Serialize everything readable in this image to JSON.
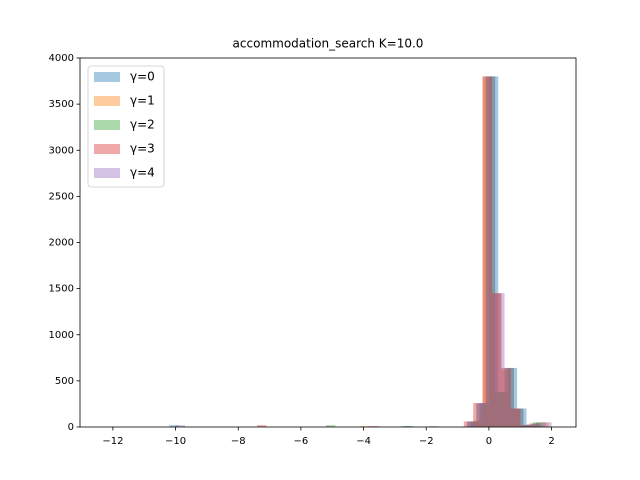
{
  "chart_data": {
    "type": "histogram",
    "title": "accommodation_search K=10.0",
    "xlim": [
      -13.05,
      2.78
    ],
    "ylim": [
      0,
      4000
    ],
    "xticks": [
      {
        "value": -12,
        "label": "−12"
      },
      {
        "value": -10,
        "label": "−10"
      },
      {
        "value": -8,
        "label": "−8"
      },
      {
        "value": -6,
        "label": "−6"
      },
      {
        "value": -4,
        "label": "−4"
      },
      {
        "value": -2,
        "label": "−2"
      },
      0,
      2
    ],
    "yticks": [
      0,
      500,
      1000,
      1500,
      2000,
      2500,
      3000,
      3500,
      4000
    ],
    "grid": false,
    "legend": "upper left",
    "alpha": 0.4,
    "series": [
      {
        "name": "γ=0",
        "color": "#1f77b4",
        "bins": [
          -10.2,
          -9.9,
          -9.6,
          -9.3,
          -9.0,
          -8.7,
          -8.4,
          -8.1,
          -7.8,
          -7.5,
          -7.2,
          -6.9,
          -6.6,
          -6.3,
          -6.0,
          -5.7,
          -5.4,
          -5.1,
          -4.8,
          -4.5,
          -4.2,
          -3.9,
          -3.6,
          -3.3,
          -3.0,
          -2.7,
          -2.4,
          -2.1,
          -1.8,
          -1.5,
          -1.2,
          -0.9,
          -0.6,
          -0.3,
          0.0,
          0.3,
          0.6,
          0.9,
          1.2,
          1.5,
          1.8
        ],
        "values": [
          20,
          0,
          0,
          0,
          0,
          0,
          0,
          0,
          0,
          0,
          0,
          0,
          0,
          0,
          0,
          0,
          0,
          0,
          0,
          0,
          0,
          0,
          0,
          0,
          0,
          10,
          0,
          0,
          0,
          0,
          0,
          0,
          60,
          260,
          3800,
          380,
          640,
          200,
          30,
          50
        ]
      },
      {
        "name": "γ=1",
        "color": "#ff7f0e",
        "bins": [
          -10.1,
          -9.8,
          -9.5,
          -9.2,
          -8.9,
          -8.6,
          -8.3,
          -8.0,
          -7.7,
          -7.4,
          -7.1,
          -6.8,
          -6.5,
          -6.2,
          -5.9,
          -5.6,
          -5.3,
          -5.0,
          -4.7,
          -4.4,
          -4.1,
          -3.8,
          -3.5,
          -3.2,
          -2.9,
          -2.6,
          -2.3,
          -2.0,
          -1.7,
          -1.4,
          -1.1,
          -0.8,
          -0.5,
          -0.2,
          0.1,
          0.4,
          0.7,
          1.0,
          1.3,
          1.6,
          1.9
        ],
        "values": [
          0,
          0,
          0,
          0,
          0,
          0,
          0,
          0,
          0,
          0,
          0,
          0,
          0,
          0,
          0,
          0,
          0,
          0,
          0,
          0,
          10,
          0,
          0,
          0,
          0,
          0,
          0,
          0,
          0,
          0,
          0,
          0,
          70,
          3800,
          1450,
          620,
          200,
          20,
          10,
          50
        ]
      },
      {
        "name": "γ=2",
        "color": "#2ca02c",
        "bins": [
          -10.3,
          -10.0,
          -9.7,
          -9.4,
          -9.1,
          -8.8,
          -8.5,
          -8.2,
          -7.9,
          -7.6,
          -7.3,
          -7.0,
          -6.7,
          -6.4,
          -6.1,
          -5.8,
          -5.5,
          -5.2,
          -4.9,
          -4.6,
          -4.3,
          -4.0,
          -3.7,
          -3.4,
          -3.1,
          -2.8,
          -2.5,
          -2.2,
          -1.9,
          -1.6,
          -1.3,
          -1.0,
          -0.7,
          -0.4,
          -0.1,
          0.2,
          0.5,
          0.8,
          1.1,
          1.4,
          1.7
        ],
        "values": [
          0,
          0,
          0,
          0,
          0,
          0,
          0,
          0,
          0,
          0,
          0,
          0,
          0,
          0,
          0,
          0,
          0,
          20,
          0,
          0,
          0,
          0,
          0,
          0,
          0,
          10,
          0,
          0,
          0,
          0,
          0,
          0,
          60,
          250,
          3800,
          380,
          640,
          200,
          20,
          50
        ]
      },
      {
        "name": "γ=3",
        "color": "#d62728",
        "bins": [
          -10.4,
          -10.1,
          -9.8,
          -9.5,
          -9.2,
          -8.9,
          -8.6,
          -8.3,
          -8.0,
          -7.7,
          -7.4,
          -7.1,
          -6.8,
          -6.5,
          -6.2,
          -5.9,
          -5.6,
          -5.3,
          -5.0,
          -4.7,
          -4.4,
          -4.1,
          -3.8,
          -3.5,
          -3.2,
          -2.9,
          -2.6,
          -2.3,
          -2.0,
          -1.7,
          -1.4,
          -1.1,
          -0.8,
          -0.5,
          -0.2,
          0.1,
          0.4,
          0.7,
          1.0,
          1.3,
          1.6
        ],
        "values": [
          0,
          0,
          0,
          0,
          0,
          0,
          0,
          0,
          0,
          0,
          20,
          0,
          0,
          0,
          0,
          0,
          0,
          0,
          0,
          0,
          0,
          0,
          10,
          0,
          0,
          0,
          0,
          0,
          0,
          0,
          0,
          0,
          60,
          260,
          3800,
          1450,
          640,
          200,
          20,
          40
        ]
      },
      {
        "name": "γ=4",
        "color": "#9467bd",
        "bins": [
          -10.0,
          -9.7,
          -9.4,
          -9.1,
          -8.8,
          -8.5,
          -8.2,
          -7.9,
          -7.6,
          -7.3,
          -7.0,
          -6.7,
          -6.4,
          -6.1,
          -5.8,
          -5.5,
          -5.2,
          -4.9,
          -4.6,
          -4.3,
          -4.0,
          -3.7,
          -3.4,
          -3.1,
          -2.8,
          -2.5,
          -2.2,
          -1.9,
          -1.6,
          -1.3,
          -1.0,
          -0.7,
          -0.4,
          -0.1,
          0.2,
          0.5,
          0.8,
          1.1,
          1.4,
          1.7,
          2.0
        ],
        "values": [
          20,
          0,
          0,
          0,
          0,
          0,
          0,
          0,
          0,
          0,
          0,
          0,
          0,
          0,
          0,
          0,
          0,
          0,
          0,
          0,
          0,
          0,
          0,
          0,
          0,
          0,
          0,
          10,
          0,
          0,
          0,
          60,
          260,
          3800,
          1450,
          640,
          200,
          20,
          30,
          50
        ]
      }
    ]
  }
}
